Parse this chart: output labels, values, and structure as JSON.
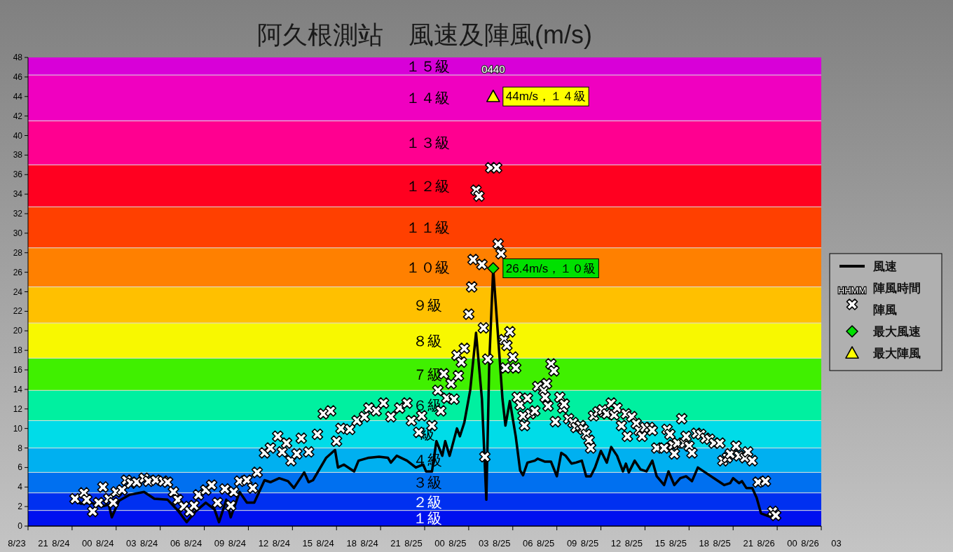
{
  "chart_data": {
    "type": "line",
    "title": "阿久根測站　風速及陣風(m/s)",
    "xlim": [
      "--08-23T21:00",
      "--08-26T03:00"
    ],
    "xticks": [
      {
        "value": "--08-23T21:00",
        "label": "8/23 21"
      },
      {
        "value": "--08-24T00:00",
        "label": "8/24 00"
      },
      {
        "value": "--08-24T03:00",
        "label": "8/24 03"
      },
      {
        "value": "--08-24T06:00",
        "label": "8/24 06"
      },
      {
        "value": "--08-24T09:00",
        "label": "8/24 09"
      },
      {
        "value": "--08-24T12:00",
        "label": "8/24 12"
      },
      {
        "value": "--08-24T15:00",
        "label": "8/24 15"
      },
      {
        "value": "--08-24T18:00",
        "label": "8/24 18"
      },
      {
        "value": "--08-24T21:00",
        "label": "8/24 21"
      },
      {
        "value": "--08-25T00:00",
        "label": "8/25 00"
      },
      {
        "value": "--08-25T03:00",
        "label": "8/25 03"
      },
      {
        "value": "--08-25T06:00",
        "label": "8/25 06"
      },
      {
        "value": "--08-25T09:00",
        "label": "8/25 09"
      },
      {
        "value": "--08-25T12:00",
        "label": "8/25 12"
      },
      {
        "value": "--08-25T15:00",
        "label": "8/25 15"
      },
      {
        "value": "--08-25T18:00",
        "label": "8/25 18"
      },
      {
        "value": "--08-25T21:00",
        "label": "8/25 21"
      },
      {
        "value": "--08-26T00:00",
        "label": "8/26 00"
      },
      {
        "value": "--08-26T03:00",
        "label": "8/26 03"
      }
    ],
    "ylim": [
      0,
      48
    ],
    "yticks": [
      0,
      2,
      4,
      6,
      8,
      10,
      12,
      14,
      16,
      18,
      20,
      22,
      24,
      26,
      28,
      30,
      32,
      34,
      36,
      38,
      40,
      42,
      44,
      46,
      48
    ],
    "legend": "right",
    "annotations": [
      "HHMM",
      {
        "text": "0440",
        "x": "--08-25T04:40",
        "y": 44
      }
    ],
    "bands": [
      {
        "axis": "y",
        "from": 0,
        "to": 1.6,
        "label": "１級",
        "color": "#0010f0"
      },
      {
        "axis": "y",
        "from": 1.6,
        "to": 3.4,
        "label": "２級",
        "color": "#0030f0"
      },
      {
        "axis": "y",
        "from": 3.4,
        "to": 5.5,
        "label": "３級",
        "color": "#0070f0"
      },
      {
        "axis": "y",
        "from": 5.5,
        "to": 8.0,
        "label": "４級",
        "color": "#00b0f0"
      },
      {
        "axis": "y",
        "from": 8.0,
        "to": 10.8,
        "label": "級",
        "color": "#00dce8"
      },
      {
        "axis": "y",
        "from": 10.8,
        "to": 13.9,
        "label": "６級",
        "color": "#00f0a0"
      },
      {
        "axis": "y",
        "from": 13.9,
        "to": 17.2,
        "label": "７級",
        "color": "#40f000"
      },
      {
        "axis": "y",
        "from": 17.2,
        "to": 20.8,
        "label": "８級",
        "color": "#f8f800"
      },
      {
        "axis": "y",
        "from": 20.8,
        "to": 24.5,
        "label": "９級",
        "color": "#ffc000"
      },
      {
        "axis": "y",
        "from": 24.5,
        "to": 28.5,
        "label": "１０級",
        "color": "#ff8000"
      },
      {
        "axis": "y",
        "from": 28.5,
        "to": 32.7,
        "label": "１１級",
        "color": "#ff4000"
      },
      {
        "axis": "y",
        "from": 32.7,
        "to": 37.0,
        "label": "１２級",
        "color": "#ff0020"
      },
      {
        "axis": "y",
        "from": 37.0,
        "to": 41.5,
        "label": "１３級",
        "color": "#ff0090"
      },
      {
        "axis": "y",
        "from": 41.5,
        "to": 46.2,
        "label": "１４級",
        "color": "#f000c0"
      },
      {
        "axis": "y",
        "from": 46.2,
        "to": 48,
        "label": "１５級",
        "color": "#d800d8"
      }
    ],
    "series": [
      {
        "name": "風速",
        "type": "line",
        "color": "#000000",
        "marker": "none",
        "x": [
          "--08-24T00:06",
          "--08-24T00:36",
          "--08-24T01:18",
          "--08-24T02:00",
          "--08-24T02:30",
          "--08-24T02:42",
          "--08-24T03:12",
          "--08-24T03:54",
          "--08-24T04:54",
          "--08-24T05:36",
          "--08-24T06:30",
          "--08-24T07:12",
          "--08-24T07:48",
          "--08-24T08:24",
          "--08-24T09:06",
          "--08-24T09:42",
          "--08-24T10:00",
          "--08-24T10:30",
          "--08-24T10:48",
          "--08-24T11:24",
          "--08-24T11:54",
          "--08-24T12:24",
          "--08-24T13:06",
          "--08-24T13:30",
          "--08-24T14:06",
          "--08-24T14:42",
          "--08-24T15:06",
          "--08-24T15:48",
          "--08-24T16:06",
          "--08-24T16:24",
          "--08-24T17:18",
          "--08-24T17:54",
          "--08-24T18:06",
          "--08-24T18:30",
          "--08-24T19:12",
          "--08-24T19:30",
          "--08-24T20:12",
          "--08-24T20:54",
          "--08-24T21:30",
          "--08-24T21:42",
          "--08-24T22:06",
          "--08-24T22:48",
          "--08-24T23:24",
          "--08-24T23:54",
          "--08-25T00:06",
          "--08-25T00:30",
          "--08-25T00:48",
          "--08-25T01:12",
          "--08-25T01:24",
          "--08-25T01:42",
          "--08-25T02:12",
          "--08-25T02:24",
          "--08-25T02:42",
          "--08-25T03:06",
          "--08-25T03:30",
          "--08-25T03:54",
          "--08-25T04:12",
          "--08-25T04:24",
          "--08-25T04:40",
          "--08-25T05:00",
          "--08-25T05:18",
          "--08-25T05:30",
          "--08-25T05:48",
          "--08-25T06:12",
          "--08-25T06:30",
          "--08-25T06:42",
          "--08-25T07:00",
          "--08-25T07:30",
          "--08-25T07:42",
          "--08-25T08:12",
          "--08-25T08:36",
          "--08-25T09:00",
          "--08-25T09:18",
          "--08-25T09:36",
          "--08-25T10:00",
          "--08-25T10:18",
          "--08-25T10:42",
          "--08-25T11:00",
          "--08-25T11:18",
          "--08-25T11:36",
          "--08-25T12:00",
          "--08-25T12:24",
          "--08-25T12:42",
          "--08-25T13:06",
          "--08-25T13:30",
          "--08-25T13:42",
          "--08-25T13:54",
          "--08-25T14:18",
          "--08-25T14:42",
          "--08-25T15:06",
          "--08-25T15:30",
          "--08-25T15:48",
          "--08-25T16:18",
          "--08-25T16:36",
          "--08-25T17:00",
          "--08-25T17:24",
          "--08-25T17:48",
          "--08-25T18:12",
          "--08-25T18:36",
          "--08-25T19:06",
          "--08-25T19:42",
          "--08-25T20:24",
          "--08-25T20:48",
          "--08-25T21:00",
          "--08-25T21:24",
          "--08-25T21:36",
          "--08-25T21:54",
          "--08-25T22:18",
          "--08-25T22:36",
          "--08-25T22:54",
          "--08-25T23:36",
          "--08-26T00:00"
        ],
        "values": [
          2.8,
          2.3,
          2.4,
          2.0,
          2.2,
          0.9,
          2.6,
          3.2,
          3.5,
          2.8,
          2.7,
          1.6,
          0.4,
          1.5,
          2.4,
          1.7,
          0.4,
          2.7,
          0.9,
          3.5,
          2.4,
          2.4,
          4.7,
          4.5,
          4.9,
          4.6,
          3.9,
          5.5,
          4.5,
          4.7,
          7.0,
          7.8,
          6.0,
          6.3,
          5.6,
          6.7,
          7.0,
          7.1,
          7.0,
          6.5,
          7.2,
          6.7,
          6.0,
          6.3,
          5.6,
          5.6,
          8.7,
          7.2,
          8.7,
          7.2,
          10.0,
          9.2,
          10.6,
          13.9,
          19.8,
          13.0,
          2.7,
          16.8,
          26.4,
          19.4,
          13.0,
          10.3,
          12.8,
          9.2,
          5.7,
          5.2,
          6.5,
          6.7,
          6.9,
          6.6,
          6.6,
          5.1,
          7.5,
          7.2,
          6.4,
          6.5,
          6.7,
          5.1,
          5.1,
          6.0,
          7.7,
          6.5,
          8.1,
          7.2,
          5.6,
          6.4,
          5.5,
          6.7,
          5.8,
          5.6,
          6.7,
          5.1,
          4.2,
          5.6,
          4.2,
          4.9,
          5.1,
          4.6,
          6.0,
          5.5,
          4.9,
          4.2,
          4.4,
          4.9,
          4.4,
          4.6,
          3.9,
          3.9,
          2.9,
          1.3,
          0.9,
          0.8
        ]
      },
      {
        "name": "陣風時間陣風",
        "type": "scatter",
        "color": "#ffffff",
        "marker": "cross",
        "x": [
          "--08-24T00:12",
          "--08-24T00:48",
          "--08-24T01:00",
          "--08-24T01:24",
          "--08-24T01:48",
          "--08-24T02:06",
          "--08-24T02:30",
          "--08-24T02:48",
          "--08-24T03:00",
          "--08-24T03:24",
          "--08-24T03:42",
          "--08-24T04:00",
          "--08-24T04:24",
          "--08-24T04:54",
          "--08-24T05:12",
          "--08-24T05:42",
          "--08-24T06:12",
          "--08-24T06:30",
          "--08-24T06:54",
          "--08-24T07:12",
          "--08-24T07:36",
          "--08-24T08:00",
          "--08-24T08:18",
          "--08-24T08:36",
          "--08-24T09:06",
          "--08-24T09:30",
          "--08-24T09:54",
          "--08-24T10:24",
          "--08-24T10:48",
          "--08-24T11:00",
          "--08-24T11:24",
          "--08-24T11:54",
          "--08-24T12:18",
          "--08-24T12:36",
          "--08-24T13:06",
          "--08-24T13:30",
          "--08-24T14:00",
          "--08-24T14:18",
          "--08-24T14:36",
          "--08-24T14:54",
          "--08-24T15:18",
          "--08-24T15:36",
          "--08-24T16:06",
          "--08-24T16:42",
          "--08-24T17:06",
          "--08-24T17:36",
          "--08-24T18:00",
          "--08-24T18:18",
          "--08-24T18:54",
          "--08-24T19:24",
          "--08-24T19:54",
          "--08-24T20:12",
          "--08-24T20:42",
          "--08-24T21:12",
          "--08-24T21:42",
          "--08-24T22:18",
          "--08-24T22:48",
          "--08-24T23:06",
          "--08-24T23:36",
          "--08-24T23:48",
          "--08-25T00:30",
          "--08-25T00:54",
          "--08-25T01:06",
          "--08-25T01:18",
          "--08-25T01:30",
          "--08-25T01:48",
          "--08-25T02:00",
          "--08-25T02:12",
          "--08-25T02:18",
          "--08-25T02:30",
          "--08-25T02:42",
          "--08-25T03:00",
          "--08-25T03:12",
          "--08-25T03:18",
          "--08-25T03:30",
          "--08-25T03:42",
          "--08-25T03:54",
          "--08-25T04:00",
          "--08-25T04:06",
          "--08-25T04:18",
          "--08-25T04:30",
          "--08-25T04:54",
          "--08-25T05:00",
          "--08-25T05:12",
          "--08-25T05:24",
          "--08-25T05:30",
          "--08-25T05:36",
          "--08-25T05:48",
          "--08-25T06:00",
          "--08-25T06:12",
          "--08-25T06:18",
          "--08-25T06:30",
          "--08-25T06:42",
          "--08-25T06:48",
          "--08-25T07:00",
          "--08-25T07:12",
          "--08-25T07:30",
          "--08-25T07:42",
          "--08-25T08:06",
          "--08-25T08:12",
          "--08-25T08:18",
          "--08-25T08:24",
          "--08-25T08:36",
          "--08-25T08:48",
          "--08-25T08:54",
          "--08-25T09:12",
          "--08-25T09:24",
          "--08-25T09:30",
          "--08-25T09:48",
          "--08-25T10:06",
          "--08-25T10:18",
          "--08-25T10:36",
          "--08-25T10:48",
          "--08-25T11:00",
          "--08-25T11:12",
          "--08-25T11:18",
          "--08-25T11:30",
          "--08-25T11:48",
          "--08-25T12:06",
          "--08-25T12:24",
          "--08-25T12:42",
          "--08-25T12:54",
          "--08-25T13:06",
          "--08-25T13:24",
          "--08-25T13:42",
          "--08-25T13:48",
          "--08-25T14:06",
          "--08-25T14:24",
          "--08-25T14:36",
          "--08-25T14:48",
          "--08-25T15:00",
          "--08-25T15:18",
          "--08-25T15:30",
          "--08-25T15:48",
          "--08-25T16:18",
          "--08-25T16:30",
          "--08-25T16:42",
          "--08-25T16:54",
          "--08-25T17:00",
          "--08-25T17:12",
          "--08-25T17:30",
          "--08-25T17:42",
          "--08-25T17:48",
          "--08-25T18:00",
          "--08-25T18:12",
          "--08-25T18:30",
          "--08-25T18:48",
          "--08-25T19:06",
          "--08-25T19:24",
          "--08-25T19:42",
          "--08-25T20:06",
          "--08-25T20:18",
          "--08-25T20:36",
          "--08-25T20:48",
          "--08-25T21:12",
          "--08-25T21:24",
          "--08-25T21:48",
          "--08-25T22:00",
          "--08-25T22:18",
          "--08-25T22:42",
          "--08-25T23:12",
          "--08-25T23:42",
          "--08-25T23:54"
        ],
        "values": [
          2.8,
          3.4,
          2.7,
          1.5,
          2.4,
          4.0,
          2.8,
          2.4,
          3.5,
          3.7,
          4.7,
          4.4,
          4.5,
          4.9,
          4.6,
          4.7,
          4.6,
          4.5,
          3.5,
          2.7,
          2.0,
          1.5,
          2.1,
          3.2,
          3.7,
          4.2,
          2.4,
          3.8,
          2.1,
          3.5,
          4.6,
          4.7,
          3.9,
          5.5,
          7.5,
          8.0,
          9.2,
          7.6,
          8.5,
          6.7,
          7.4,
          9.0,
          7.6,
          9.4,
          11.5,
          11.8,
          8.7,
          10.0,
          9.9,
          10.8,
          11.2,
          12.1,
          11.8,
          12.6,
          11.2,
          12.1,
          12.6,
          10.8,
          9.6,
          11.3,
          10.3,
          13.9,
          11.8,
          15.6,
          13.1,
          14.6,
          13.0,
          17.5,
          15.4,
          16.8,
          18.2,
          21.7,
          24.5,
          27.3,
          34.4,
          33.8,
          26.8,
          20.3,
          7.1,
          17.1,
          36.7,
          36.7,
          28.9,
          27.9,
          19.1,
          16.2,
          18.5,
          19.9,
          17.3,
          16.2,
          13.2,
          12.4,
          11.3,
          10.3,
          13.1,
          11.5,
          11.8,
          14.3,
          13.9,
          13.2,
          14.6,
          12.3,
          16.6,
          15.9,
          10.7,
          13.2,
          12.1,
          12.5,
          11.0,
          10.6,
          10.1,
          10.3,
          9.9,
          9.4,
          8.8,
          8.0,
          11.3,
          11.7,
          11.9,
          11.5,
          12.6,
          11.4,
          12.1,
          10.3,
          11.5,
          9.2,
          11.2,
          10.5,
          9.8,
          9.2,
          10.1,
          10.1,
          9.8,
          8.0,
          8.0,
          9.9,
          9.4,
          8.3,
          7.4,
          8.5,
          11.0,
          8.5,
          9.2,
          8.2,
          7.5,
          9.5,
          9.4,
          9.0,
          8.9,
          8.5,
          8.5,
          6.7,
          7.0,
          7.4,
          8.2,
          7.2,
          7.0,
          7.6,
          6.7,
          4.5,
          4.6,
          1.5,
          1.1
        ]
      },
      {
        "name": "最大風速",
        "type": "scatter",
        "color": "#00e000",
        "marker": "diamond",
        "x": [
          "--08-25T04:40"
        ],
        "values": [
          26.4
        ],
        "value_labels": [
          "26.4m/s，１０級"
        ]
      },
      {
        "name": "最大陣風",
        "type": "scatter",
        "color": "#ffff00",
        "marker": "triangle",
        "x": [
          "--08-25T04:40"
        ],
        "values": [
          44
        ],
        "value_labels": [
          "44m/s，１４級"
        ]
      }
    ]
  }
}
